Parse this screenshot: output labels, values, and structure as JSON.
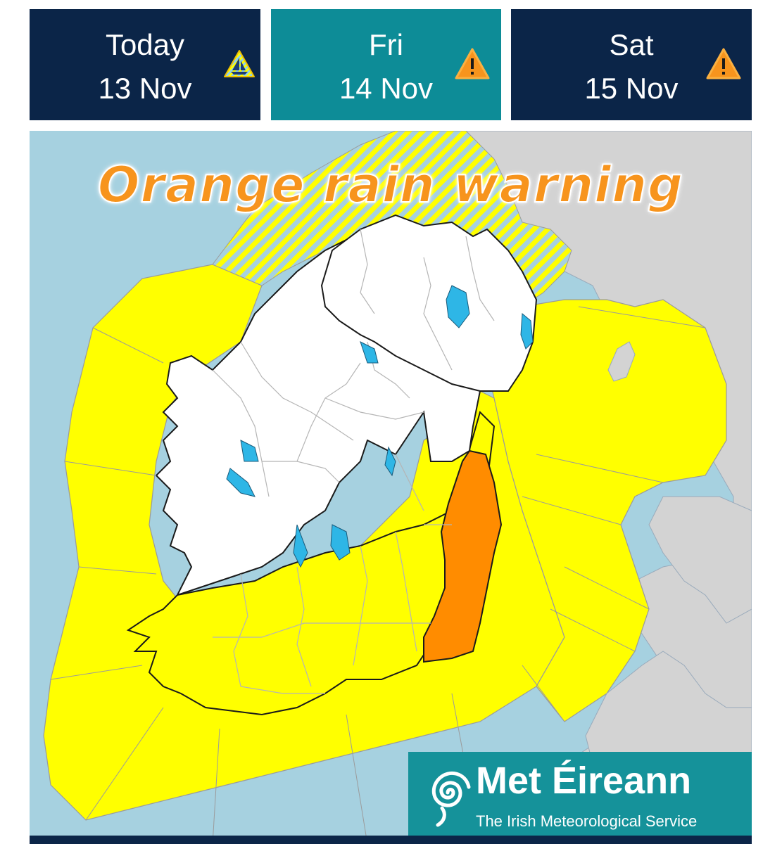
{
  "tabs": [
    {
      "day": "Today",
      "date": "13 Nov",
      "icon": "marine-warning-icon",
      "selected": false
    },
    {
      "day": "Fri",
      "date": "14 Nov",
      "icon": "warning-icon",
      "selected": true
    },
    {
      "day": "Sat",
      "date": "15 Nov",
      "icon": "warning-icon",
      "selected": false
    }
  ],
  "map": {
    "title": "Orange rain warning",
    "colors": {
      "sea": "#a6d1e0",
      "yellow": "#ffff00",
      "orange": "#ff8c00",
      "land_no_warning": "#ffffff",
      "other_land": "#d3d3d3",
      "lakes": "#2eb6e6"
    }
  },
  "logo": {
    "brand": "Met Éireann",
    "tagline": "The Irish Meteorological Service"
  },
  "colors": {
    "tab_dark": "#0b2548",
    "tab_selected": "#0d8c97",
    "logo_bg": "#15929a"
  }
}
